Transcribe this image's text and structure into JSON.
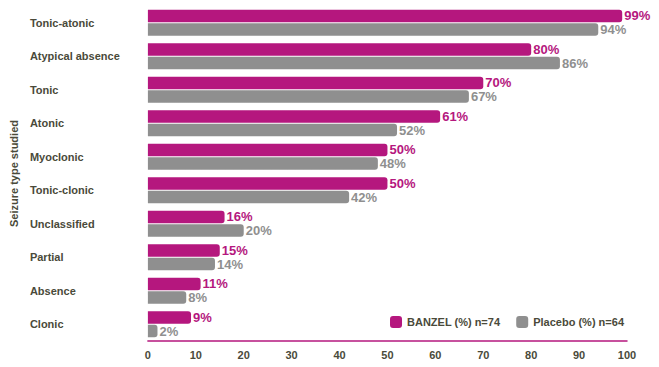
{
  "chart_data": {
    "type": "bar",
    "orientation": "horizontal",
    "y_label": "Seizure type studied",
    "categories": [
      "Tonic-atonic",
      "Atypical absence",
      "Tonic",
      "Atonic",
      "Myoclonic",
      "Tonic-clonic",
      "Unclassified",
      "Partial",
      "Absence",
      "Clonic"
    ],
    "series": [
      {
        "name": "BANZEL (%) n=74",
        "color": "#b5177e",
        "values": [
          99,
          80,
          70,
          61,
          50,
          50,
          16,
          15,
          11,
          9
        ],
        "value_labels": [
          "99%",
          "80%",
          "70%",
          "61%",
          "50%",
          "50%",
          "16%",
          "15%",
          "11%",
          "9%"
        ]
      },
      {
        "name": "Placebo (%) n=64",
        "color": "#8f8f8f",
        "values": [
          94,
          86,
          67,
          52,
          48,
          42,
          20,
          14,
          8,
          2
        ],
        "value_labels": [
          "94%",
          "86%",
          "67%",
          "52%",
          "48%",
          "42%",
          "20%",
          "14%",
          "8%",
          "2%"
        ]
      }
    ],
    "xlim": [
      0,
      100
    ],
    "xticks": [
      0,
      10,
      20,
      30,
      40,
      50,
      60,
      70,
      80,
      90,
      100
    ],
    "grid": false,
    "data_labels": true,
    "legend": "bottom-right"
  }
}
